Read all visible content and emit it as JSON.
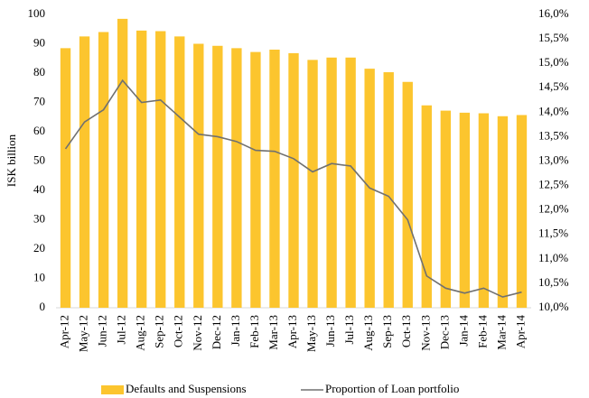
{
  "chart_data": {
    "type": "combo",
    "y_label": "ISK billion",
    "categories": [
      "Apr-12",
      "May-12",
      "Jun-12",
      "Jul-12",
      "Aug-12",
      "Sep-12",
      "Oct-12",
      "Nov-12",
      "Dec-12",
      "Jan-13",
      "Feb-13",
      "Mar-13",
      "Apr-13",
      "May-13",
      "Jun-13",
      "Jul-13",
      "Aug-13",
      "Sep-13",
      "Oct-13",
      "Nov-13",
      "Dec-13",
      "Jan-14",
      "Feb-14",
      "Mar-14",
      "Apr-14"
    ],
    "series": [
      {
        "name": "Defaults and Suspensions",
        "type": "bar",
        "color": "#fcc52e",
        "values": [
          88.5,
          92.5,
          94,
          98.5,
          94.5,
          94.3,
          92.5,
          90,
          89.3,
          88.5,
          87.2,
          88,
          86.8,
          84.5,
          85.3,
          85.3,
          81.5,
          80.3,
          77,
          69,
          67.2,
          66.5,
          66.3,
          65.3,
          65.7
        ]
      },
      {
        "name": "Proportion of Loan portfolio",
        "type": "line",
        "color": "#707070",
        "axis": "y2",
        "values": [
          13.25,
          13.8,
          14.05,
          14.65,
          14.2,
          14.25,
          13.9,
          13.55,
          13.5,
          13.4,
          13.22,
          13.2,
          13.05,
          12.78,
          12.95,
          12.9,
          12.45,
          12.28,
          11.8,
          10.65,
          10.4,
          10.3,
          10.4,
          10.22,
          10.32
        ]
      }
    ],
    "ylim": [
      0,
      100
    ],
    "yticks": [
      0,
      10,
      20,
      30,
      40,
      50,
      60,
      70,
      80,
      90,
      100
    ],
    "y2lim": [
      10,
      16
    ],
    "y2ticks": [
      {
        "value": 10,
        "label": "10,0%"
      },
      {
        "value": 10.5,
        "label": "10,5%"
      },
      {
        "value": 11,
        "label": "11,0%"
      },
      {
        "value": 11.5,
        "label": "11,5%"
      },
      {
        "value": 12,
        "label": "12,0%"
      },
      {
        "value": 12.5,
        "label": "12,5%"
      },
      {
        "value": 13,
        "label": "13,0%"
      },
      {
        "value": 13.5,
        "label": "13,5%"
      },
      {
        "value": 14,
        "label": "14,0%"
      },
      {
        "value": 14.5,
        "label": "14,5%"
      },
      {
        "value": 15,
        "label": "15,0%"
      },
      {
        "value": 15.5,
        "label": "15,5%"
      },
      {
        "value": 16,
        "label": "16,0%"
      }
    ],
    "grid": false,
    "legend": "bottom"
  }
}
